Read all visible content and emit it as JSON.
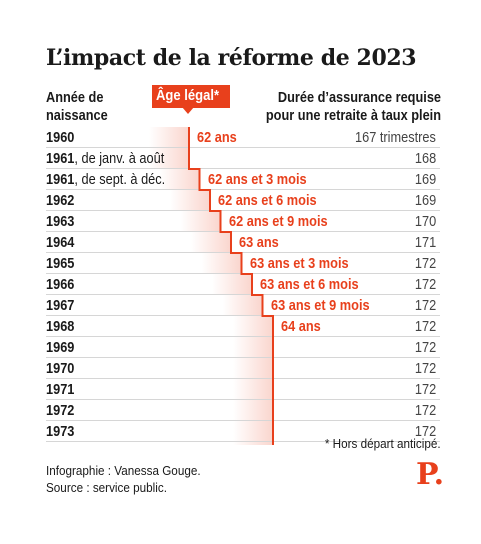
{
  "title": "L’impact de la réforme de 2023",
  "header": {
    "birth_year_line1": "Année de",
    "birth_year_line2": "naissance",
    "legal_age_badge": "Âge légal*",
    "duration_line1": "Durée d’assurance requise",
    "duration_line2": "pour une retraite à taux plein"
  },
  "rows": [
    {
      "year": "1960",
      "suffix": "",
      "age": "62 ans",
      "quarters": "167 trimestres",
      "age_years": 62.0
    },
    {
      "year": "1961",
      "suffix": ", de janv. à août",
      "age": "",
      "quarters": "168",
      "age_years": 62.0
    },
    {
      "year": "1961",
      "suffix": ", de sept. à déc.",
      "age": "62 ans et 3 mois",
      "quarters": "169",
      "age_years": 62.25
    },
    {
      "year": "1962",
      "suffix": "",
      "age": "62 ans et 6 mois",
      "quarters": "169",
      "age_years": 62.5
    },
    {
      "year": "1963",
      "suffix": "",
      "age": "62 ans et 9 mois",
      "quarters": "170",
      "age_years": 62.75
    },
    {
      "year": "1964",
      "suffix": "",
      "age": "63 ans",
      "quarters": "171",
      "age_years": 63.0
    },
    {
      "year": "1965",
      "suffix": "",
      "age": "63 ans et 3 mois",
      "quarters": "172",
      "age_years": 63.25
    },
    {
      "year": "1966",
      "suffix": "",
      "age": "63 ans et 6 mois",
      "quarters": "172",
      "age_years": 63.5
    },
    {
      "year": "1967",
      "suffix": "",
      "age": "63 ans et 9 mois",
      "quarters": "172",
      "age_years": 63.75
    },
    {
      "year": "1968",
      "suffix": "",
      "age": "64 ans",
      "quarters": "172",
      "age_years": 64.0
    },
    {
      "year": "1969",
      "suffix": "",
      "age": "",
      "quarters": "172",
      "age_years": 64.0
    },
    {
      "year": "1970",
      "suffix": "",
      "age": "",
      "quarters": "172",
      "age_years": 64.0
    },
    {
      "year": "1971",
      "suffix": "",
      "age": "",
      "quarters": "172",
      "age_years": 64.0
    },
    {
      "year": "1972",
      "suffix": "",
      "age": "",
      "quarters": "172",
      "age_years": 64.0
    },
    {
      "year": "1973",
      "suffix": "",
      "age": "",
      "quarters": "172",
      "age_years": 64.0
    }
  ],
  "footnote": "* Hors départ anticipé.",
  "credits": {
    "infographic": "Infographie : Vanessa Gouge.",
    "source": "Source : service public."
  },
  "logo": "P.",
  "colors": {
    "accent": "#e8401c",
    "text": "#1a1a1a",
    "divider": "#d6d6d6"
  }
}
